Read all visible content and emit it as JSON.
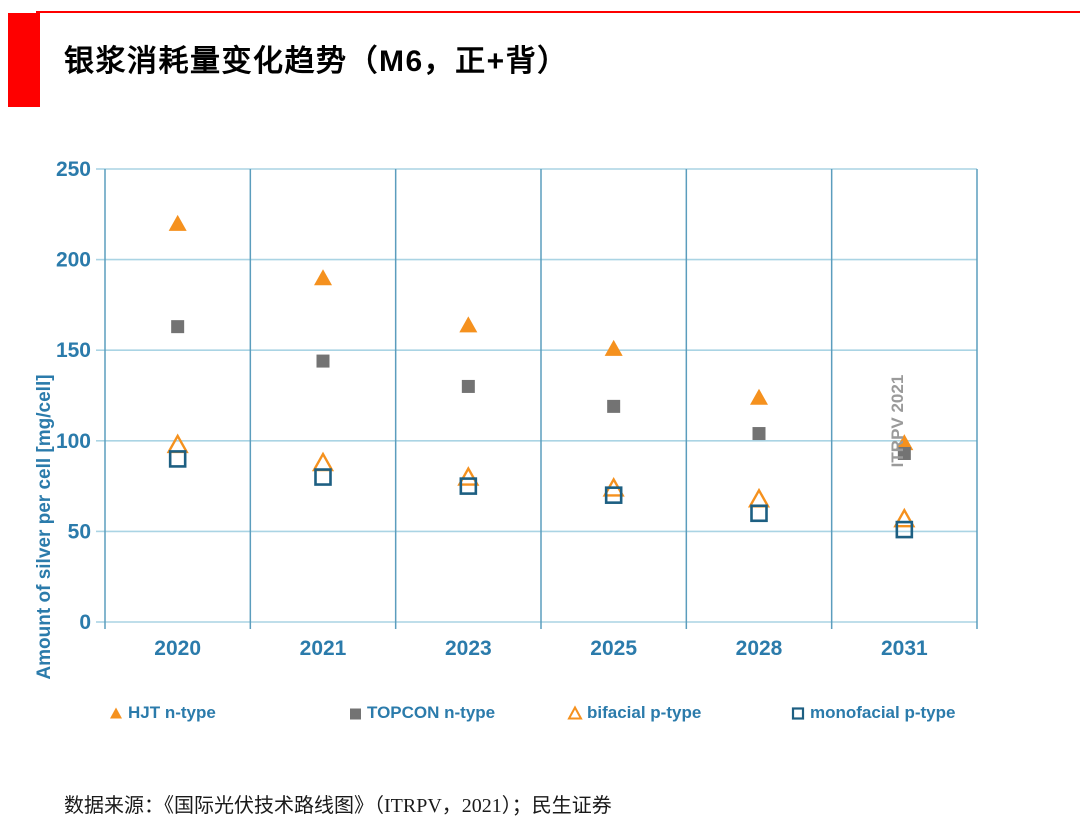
{
  "page": {
    "title": "银浆消耗量变化趋势（M6，正+背）"
  },
  "colors": {
    "accent": "#fe0000",
    "axis_text": "#2b7bab",
    "grid_horizontal": "#aad4e4",
    "grid_vertical": "#5b9dbd",
    "hjt_orange": "#f5911e",
    "topcon_gray": "#737373",
    "monofacial_teal": "#1d5f82",
    "annotation_gray": "#9a9a9a"
  },
  "chart_data": {
    "type": "scatter",
    "title": "",
    "xlabel": "",
    "ylabel": "Amount of silver per cell [mg/cell]",
    "ylim": [
      0,
      250
    ],
    "yticks": [
      0,
      50,
      100,
      150,
      200,
      250
    ],
    "categories": [
      "2020",
      "2021",
      "2023",
      "2025",
      "2028",
      "2031"
    ],
    "grid": true,
    "legend_position": "bottom",
    "annotation": "ITRPV 2021",
    "series": [
      {
        "name": "HJT n-type",
        "marker": "filled-triangle",
        "color": "#f5911e",
        "values": [
          220,
          190,
          164,
          151,
          124,
          99
        ]
      },
      {
        "name": "TOPCON n-type",
        "marker": "filled-square",
        "color": "#737373",
        "values": [
          163,
          144,
          130,
          119,
          104,
          93
        ]
      },
      {
        "name": "bifacial p-type",
        "marker": "open-triangle",
        "color": "#f5911e",
        "values": [
          98,
          88,
          80,
          74,
          68,
          57
        ]
      },
      {
        "name": "monofacial p-type",
        "marker": "open-square",
        "color": "#1d5f82",
        "values": [
          90,
          80,
          75,
          70,
          60,
          51
        ]
      }
    ]
  },
  "footer": {
    "source": "数据来源：《国际光伏技术路线图》（ITRPV，2021）；民生证券"
  }
}
